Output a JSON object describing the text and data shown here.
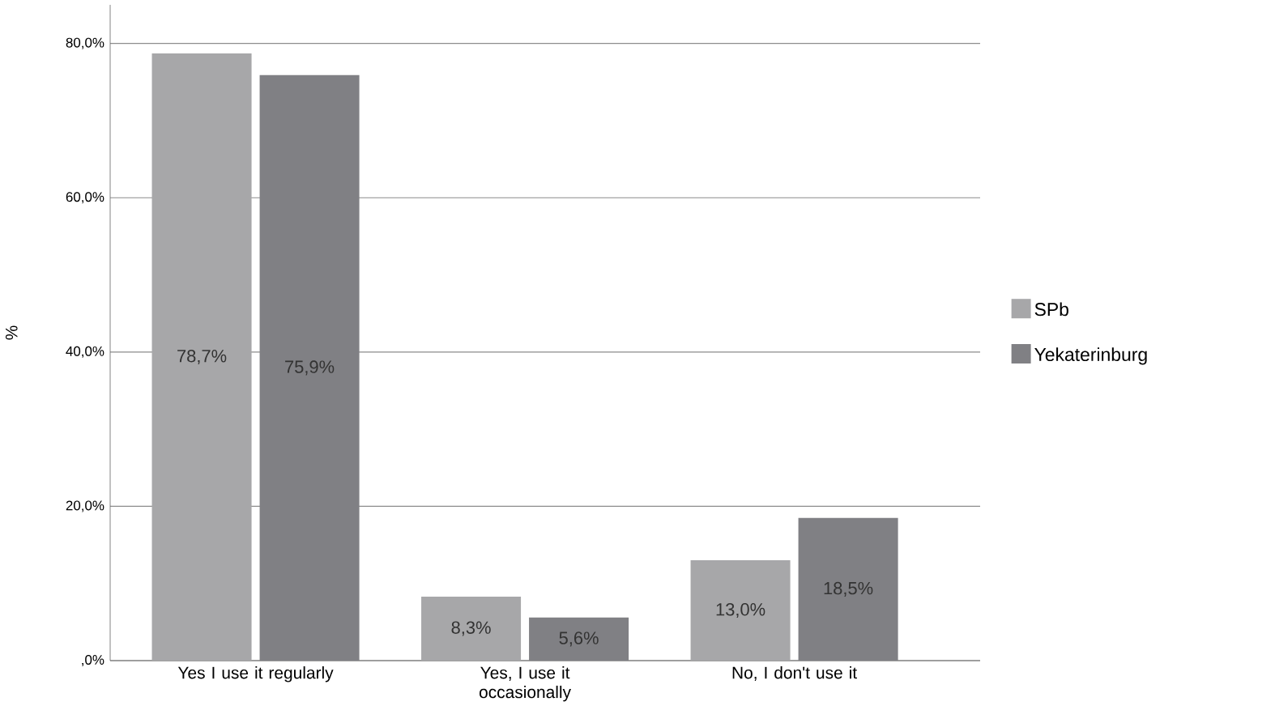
{
  "chart_data": {
    "type": "bar",
    "ylabel": "%",
    "categories": [
      "Yes I use it regularly",
      "Yes, I use it occasionally",
      "No, I don't use it"
    ],
    "series": [
      {
        "name": "SPb",
        "color": "#a7a7a9",
        "values": [
          78.7,
          8.3,
          13.0
        ],
        "value_labels": [
          "78,7%",
          "8,3%",
          "13,0%"
        ]
      },
      {
        "name": "Yekaterinburg",
        "color": "#808084",
        "values": [
          75.9,
          5.6,
          18.5
        ],
        "value_labels": [
          "75,9%",
          "5,6%",
          "18,5%"
        ]
      }
    ],
    "ylim": [
      0,
      85
    ],
    "yticks": [
      {
        "value": 0,
        "label": ",0%"
      },
      {
        "value": 20,
        "label": "20,0%"
      },
      {
        "value": 40,
        "label": "40,0%"
      },
      {
        "value": 60,
        "label": "60,0%"
      },
      {
        "value": 80,
        "label": "80,0%"
      }
    ],
    "grid": "y",
    "legend": "right"
  }
}
